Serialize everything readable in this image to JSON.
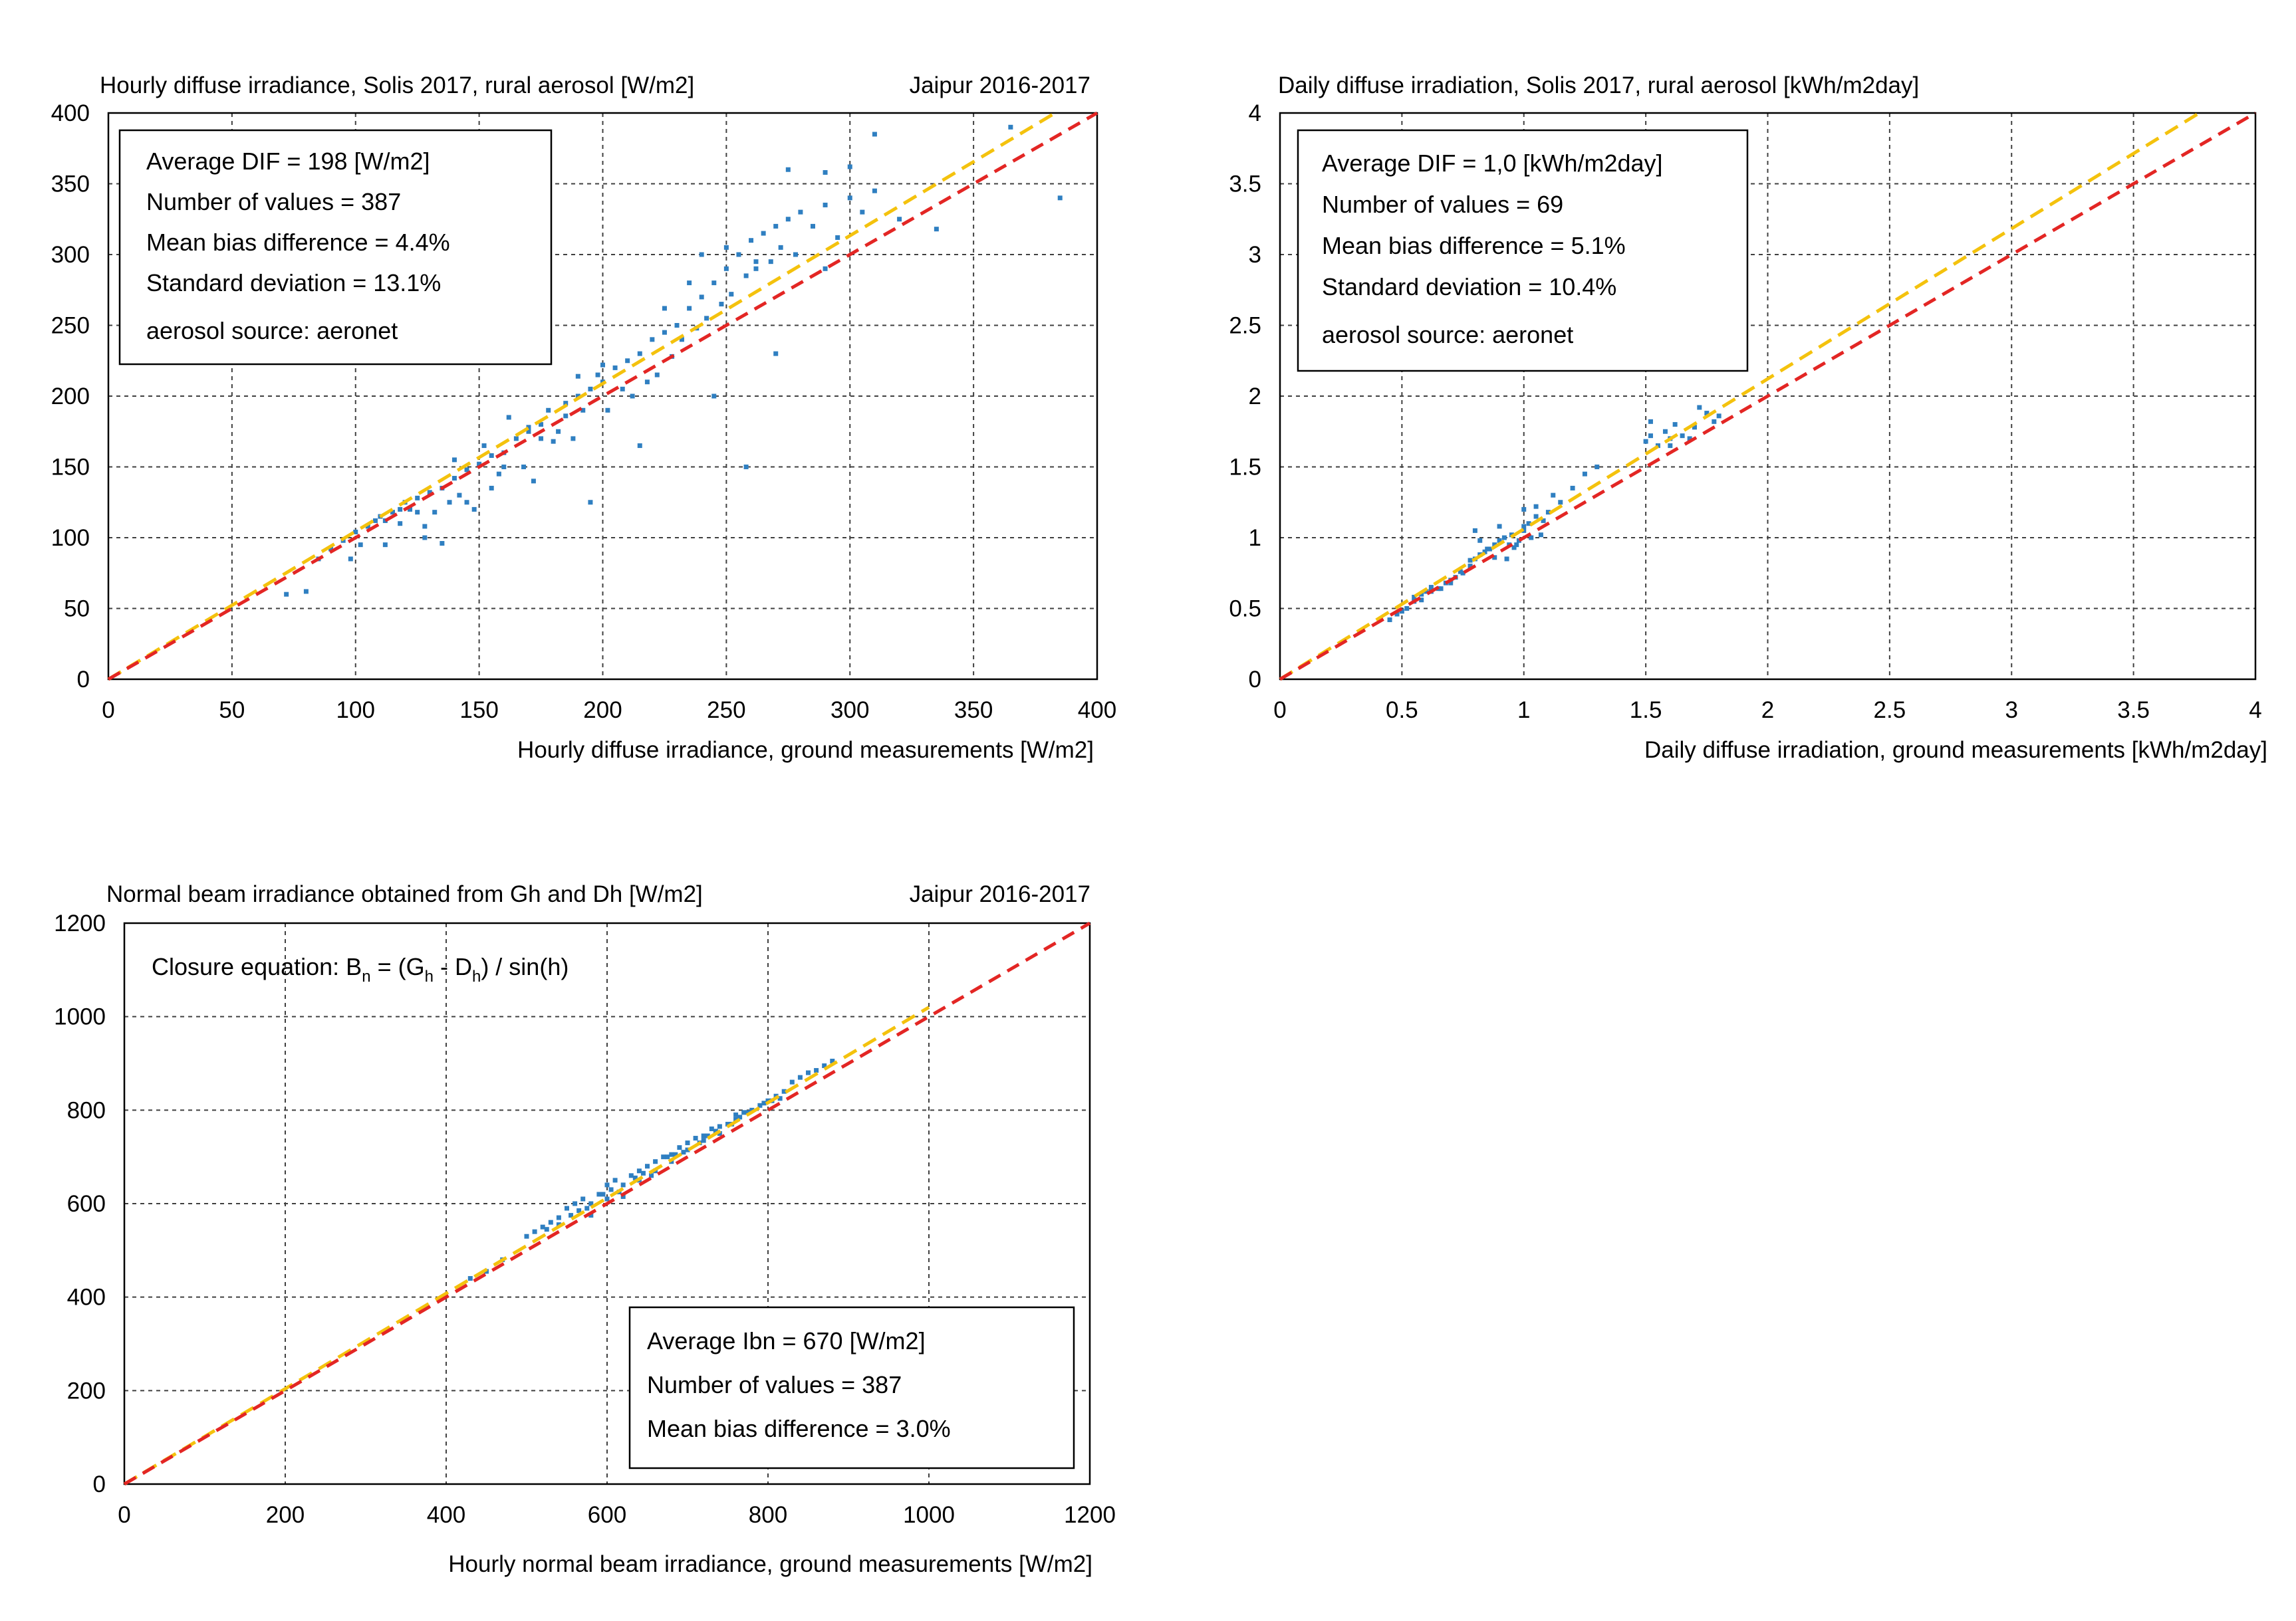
{
  "colors": {
    "points": "#2f7fc1",
    "reference_line": "#e32624",
    "fit_line": "#f4c20d"
  },
  "chart_data": [
    {
      "type": "scatter",
      "title": "Hourly diffuse irradiance, Solis 2017,  rural aerosol [W/m2]",
      "title_right": "Jaipur 2016-2017",
      "xlabel": "Hourly diffuse irradiance,   ground measurements [W/m2]",
      "ylabel": "",
      "xlim": [
        0,
        400
      ],
      "ylim": [
        0,
        400
      ],
      "xticks": [
        0,
        50,
        100,
        150,
        200,
        250,
        300,
        350,
        400
      ],
      "yticks": [
        0,
        50,
        100,
        150,
        200,
        250,
        300,
        350,
        400
      ],
      "tick_labels_x": [
        "0",
        "50",
        "100",
        "150",
        "200",
        "250",
        "300",
        "350",
        "400"
      ],
      "tick_labels_y": [
        "0",
        "50",
        "100",
        "150",
        "200",
        "250",
        "300",
        "350",
        "400"
      ],
      "grid": true,
      "stats": [
        "Average DIF = 198 [W/m2]",
        "Number of values = 387",
        "Mean bias difference = 4.4%",
        "Standard deviation = 13.1%",
        "aerosol source: aeronet"
      ],
      "reference_line": {
        "x": [
          0,
          400
        ],
        "y": [
          0,
          400
        ]
      },
      "fit_line": {
        "x": [
          0,
          383
        ],
        "y": [
          0,
          400
        ]
      },
      "series": [
        {
          "name": "hourly diffuse points",
          "x": [
            72,
            80,
            85,
            90,
            95,
            98,
            100,
            102,
            105,
            108,
            110,
            112,
            115,
            118,
            120,
            122,
            125,
            128,
            130,
            132,
            135,
            138,
            140,
            142,
            145,
            148,
            150,
            152,
            155,
            158,
            160,
            162,
            165,
            168,
            170,
            172,
            175,
            178,
            180,
            182,
            185,
            188,
            190,
            192,
            195,
            198,
            200,
            202,
            205,
            208,
            210,
            212,
            215,
            218,
            220,
            222,
            225,
            228,
            230,
            232,
            235,
            238,
            240,
            242,
            245,
            248,
            250,
            252,
            255,
            258,
            260,
            262,
            265,
            268,
            270,
            272,
            275,
            278,
            280,
            285,
            290,
            295,
            300,
            305,
            310,
            320,
            335,
            385,
            128,
            135,
            145,
            160,
            175,
            185,
            195,
            215,
            245,
            258,
            270,
            290,
            310,
            365,
            112,
            118,
            125,
            140,
            155,
            170,
            190,
            200,
            225,
            235,
            240,
            250,
            262,
            275,
            290,
            300
          ],
          "y": [
            60,
            62,
            85,
            92,
            98,
            85,
            104,
            95,
            108,
            112,
            115,
            95,
            118,
            110,
            125,
            120,
            128,
            100,
            132,
            118,
            135,
            125,
            142,
            130,
            148,
            120,
            152,
            165,
            158,
            145,
            160,
            185,
            170,
            150,
            175,
            140,
            180,
            190,
            168,
            175,
            195,
            170,
            200,
            190,
            205,
            215,
            210,
            190,
            220,
            205,
            225,
            200,
            230,
            210,
            240,
            215,
            245,
            228,
            250,
            240,
            262,
            248,
            270,
            255,
            280,
            265,
            290,
            272,
            300,
            285,
            310,
            290,
            315,
            295,
            320,
            305,
            325,
            300,
            330,
            320,
            335,
            312,
            340,
            330,
            345,
            325,
            318,
            340,
            108,
            96,
            125,
            150,
            170,
            186,
            125,
            165,
            200,
            150,
            230,
            290,
            385,
            390,
            112,
            120,
            118,
            155,
            135,
            178,
            214,
            222,
            262,
            280,
            300,
            305,
            295,
            360,
            358,
            362
          ]
        }
      ]
    },
    {
      "type": "scatter",
      "title": "Daily diffuse irradiation, Solis 2017,  rural aerosol [kWh/m2day]",
      "xlabel": "Daily diffuse irradiation,   ground measurements [kWh/m2day]",
      "ylabel": "",
      "xlim": [
        0,
        4
      ],
      "ylim": [
        0,
        4
      ],
      "xticks": [
        0,
        0.5,
        1,
        1.5,
        2,
        2.5,
        3,
        3.5,
        4
      ],
      "yticks": [
        0,
        0.5,
        1,
        1.5,
        2,
        2.5,
        3,
        3.5,
        4
      ],
      "tick_labels_x": [
        "0",
        "0.5",
        "1",
        "1.5",
        "2",
        "2.5",
        "3",
        "3.5",
        "4"
      ],
      "tick_labels_y": [
        "0",
        "0.5",
        "1",
        "1.5",
        "2",
        "2.5",
        "3",
        "3.5",
        "4"
      ],
      "grid": true,
      "stats": [
        "Average DIF = 1,0 [kWh/m2day]",
        "Number of values = 69",
        "Mean bias difference = 5.1%",
        "Standard deviation = 10.4%",
        "aerosol source: aeronet"
      ],
      "reference_line": {
        "x": [
          0,
          4
        ],
        "y": [
          0,
          4
        ]
      },
      "fit_line": {
        "x": [
          0,
          3.77
        ],
        "y": [
          0,
          4
        ]
      },
      "series": [
        {
          "name": "daily diffuse points",
          "x": [
            0.45,
            0.5,
            0.52,
            0.55,
            0.58,
            0.6,
            0.62,
            0.65,
            0.68,
            0.7,
            0.72,
            0.75,
            0.78,
            0.8,
            0.82,
            0.84,
            0.86,
            0.88,
            0.9,
            0.92,
            0.95,
            0.97,
            1.0,
            1.02,
            1.05,
            1.08,
            1.1,
            1.15,
            1.2,
            1.25,
            1.3,
            1.5,
            1.52,
            1.55,
            1.58,
            1.6,
            1.62,
            1.65,
            1.7,
            1.75,
            1.78,
            1.8,
            0.8,
            0.85,
            0.9,
            0.93,
            0.98,
            1.0,
            1.05,
            0.55,
            0.62,
            0.7,
            0.78,
            0.82,
            0.88,
            0.94,
            1.0,
            1.03,
            1.12,
            1.52,
            1.6,
            1.68,
            1.72,
            0.48,
            0.58,
            0.66,
            0.74,
            0.96,
            1.07
          ],
          "y": [
            0.42,
            0.48,
            0.5,
            0.55,
            0.6,
            0.62,
            0.65,
            0.64,
            0.68,
            0.7,
            0.72,
            0.75,
            0.8,
            0.85,
            0.88,
            0.9,
            0.92,
            0.95,
            0.98,
            1.0,
            1.02,
            0.95,
            1.05,
            1.1,
            1.15,
            1.12,
            1.18,
            1.25,
            1.35,
            1.45,
            1.5,
            1.68,
            1.72,
            1.65,
            1.75,
            1.7,
            1.8,
            1.72,
            1.78,
            1.88,
            1.82,
            1.86,
            1.05,
            0.92,
            1.08,
            0.85,
            0.98,
            1.2,
            1.22,
            0.58,
            0.62,
            0.68,
            0.84,
            0.98,
            0.86,
            0.95,
            1.08,
            1.0,
            1.3,
            1.82,
            1.65,
            1.7,
            1.92,
            0.46,
            0.56,
            0.64,
            0.76,
            0.93,
            1.02
          ]
        }
      ]
    },
    {
      "type": "scatter",
      "title": "Normal beam irradiance obtained from Gh and Dh [W/m2]",
      "title_right": "Jaipur 2016-2017",
      "xlabel": "Hourly normal beam irradiance,   ground measurements [W/m2]",
      "ylabel": "",
      "xlim": [
        0,
        1200
      ],
      "ylim": [
        0,
        1200
      ],
      "xticks": [
        0,
        200,
        400,
        600,
        800,
        1000,
        1200
      ],
      "yticks": [
        0,
        200,
        400,
        600,
        800,
        1000,
        1200
      ],
      "tick_labels_x": [
        "0",
        "200",
        "400",
        "600",
        "800",
        "1000",
        "1200"
      ],
      "tick_labels_y": [
        "0",
        "200",
        "400",
        "600",
        "800",
        "1000",
        "1200"
      ],
      "grid": true,
      "equation": {
        "prefix": "Closure equation:  B",
        "sub1": "n",
        "mid1": " = (G",
        "sub2": "h",
        "mid2": " - D",
        "sub3": "h",
        "suffix": ") / sin(h)"
      },
      "stats": [
        "Average Ibn = 670 [W/m2]",
        "Number of values = 387",
        "Mean bias difference = 3.0%"
      ],
      "reference_line": {
        "x": [
          0,
          1200
        ],
        "y": [
          0,
          1200
        ]
      },
      "fit_line": {
        "x": [
          0,
          1000
        ],
        "y": [
          0,
          1020
        ]
      },
      "series": [
        {
          "name": "normal beam points",
          "x": [
            430,
            450,
            470,
            500,
            510,
            520,
            530,
            540,
            550,
            560,
            570,
            580,
            590,
            600,
            610,
            620,
            630,
            640,
            650,
            660,
            670,
            680,
            690,
            700,
            710,
            720,
            730,
            740,
            750,
            760,
            770,
            780,
            790,
            800,
            810,
            820,
            830,
            840,
            850,
            860,
            870,
            880,
            540,
            555,
            575,
            595,
            615,
            635,
            655,
            675,
            695,
            715,
            735,
            755,
            775,
            795,
            815,
            580,
            600,
            620,
            640,
            660,
            680,
            700,
            720,
            740,
            760,
            525,
            565,
            605,
            645,
            685,
            725,
            765,
            805
          ],
          "y": [
            440,
            455,
            480,
            530,
            540,
            550,
            560,
            570,
            590,
            600,
            610,
            600,
            620,
            640,
            650,
            640,
            660,
            670,
            680,
            690,
            700,
            705,
            720,
            730,
            740,
            745,
            760,
            765,
            770,
            790,
            795,
            800,
            810,
            820,
            830,
            840,
            860,
            870,
            880,
            885,
            895,
            905,
            555,
            575,
            590,
            620,
            625,
            655,
            660,
            700,
            710,
            730,
            755,
            770,
            795,
            815,
            825,
            575,
            610,
            615,
            650,
            670,
            690,
            715,
            735,
            750,
            780,
            545,
            585,
            630,
            665,
            705,
            745,
            785,
            820
          ]
        }
      ]
    }
  ]
}
